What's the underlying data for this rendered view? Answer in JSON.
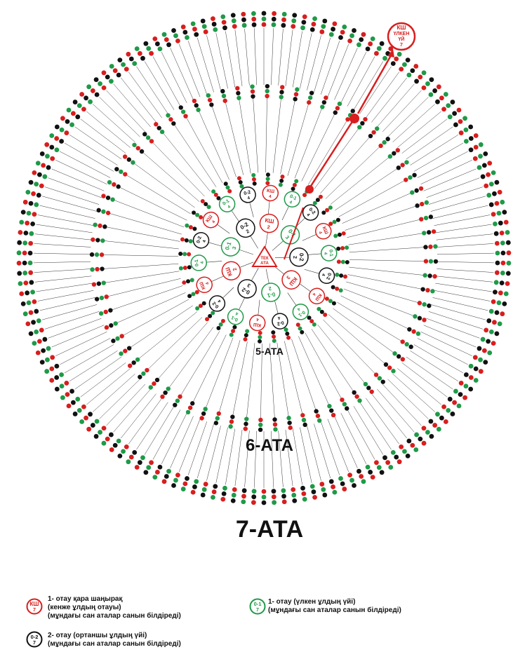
{
  "center": {
    "label_line1": "ТЕК",
    "label_line2": "АТА"
  },
  "generation_labels": {
    "gen5": "5-АТА",
    "gen6": "6-АТА",
    "gen7": "7-АТА"
  },
  "highlight_node": {
    "line1": "КШ",
    "line2": "ҮЛКЕН",
    "line3": "ҮЙ",
    "line4": "7"
  },
  "colors": {
    "red": "#d81e1e",
    "green": "#1e9a48",
    "black": "#111111",
    "line": "#333333"
  },
  "ring_nodes": [
    {
      "top": "КШ",
      "bottom": "2",
      "color": "red"
    },
    {
      "top": "0-1",
      "bottom": "2",
      "color": "green"
    },
    {
      "top": "0-2",
      "bottom": "2",
      "color": "black"
    }
  ],
  "legend": [
    {
      "icon_top": "КШ",
      "icon_bottom": "7",
      "icon_color": "red",
      "lines": [
        "1- отау қара шаңырақ",
        "(кенже ұлдың отауы)",
        "(мұндағы сан аталар санын білдіреді)"
      ]
    },
    {
      "icon_top": "0-1",
      "icon_bottom": "7",
      "icon_color": "green",
      "lines": [
        "1- отау (үлкен ұлдың үйі)",
        "(мұндағы сан аталар санын білдіреді)"
      ]
    },
    {
      "icon_top": "0-2",
      "icon_bottom": "7",
      "icon_color": "black",
      "lines": [
        "2- отау (ортаншы ұлдың үйі)",
        "(мұндағы сан аталар санын білдіреді)"
      ]
    }
  ]
}
